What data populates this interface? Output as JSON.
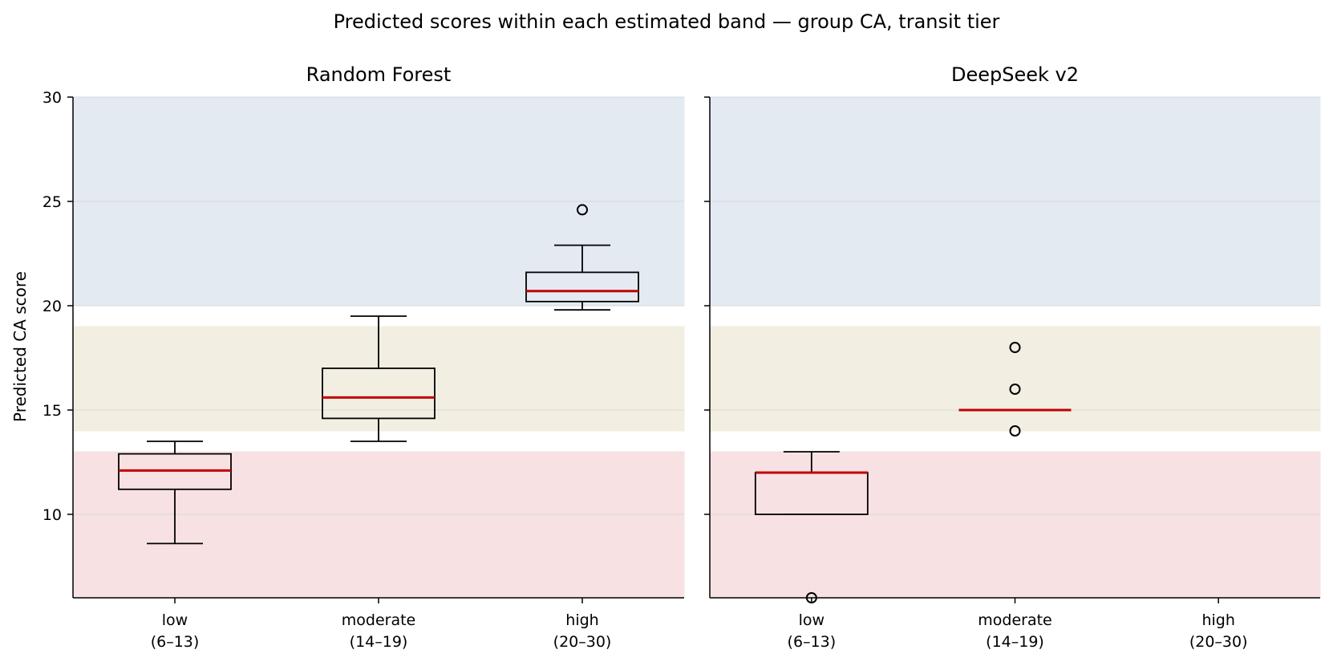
{
  "chart_data": {
    "type": "box",
    "title": "Predicted scores within each estimated band — group CA, transit tier",
    "ylabel": "Predicted CA score",
    "ylim": [
      6,
      30
    ],
    "yticks": [
      10,
      15,
      20,
      25,
      30
    ],
    "categories": [
      {
        "label": "low",
        "range": "(6–13)"
      },
      {
        "label": "moderate",
        "range": "(14–19)"
      },
      {
        "label": "high",
        "range": "(20–30)"
      }
    ],
    "bands": [
      {
        "name": "low",
        "from": 6,
        "to": 13,
        "color": "#f7e1e3"
      },
      {
        "name": "moderate",
        "from": 14,
        "to": 19,
        "color": "#f2eee2"
      },
      {
        "name": "high",
        "from": 20,
        "to": 30,
        "color": "#e3eaf2"
      }
    ],
    "colors": {
      "median": "#c00000",
      "box": "#000000"
    },
    "panels": [
      {
        "title": "Random Forest",
        "boxes": [
          {
            "category": "low",
            "whisker_low": 8.6,
            "q1": 11.2,
            "median": 12.1,
            "q3": 12.9,
            "whisker_high": 13.5,
            "outliers": []
          },
          {
            "category": "moderate",
            "whisker_low": 13.5,
            "q1": 14.6,
            "median": 15.6,
            "q3": 17.0,
            "whisker_high": 19.5,
            "outliers": []
          },
          {
            "category": "high",
            "whisker_low": 19.8,
            "q1": 20.2,
            "median": 20.7,
            "q3": 21.6,
            "whisker_high": 22.9,
            "outliers": [
              24.6
            ]
          }
        ]
      },
      {
        "title": "DeepSeek v2",
        "boxes": [
          {
            "category": "low",
            "whisker_low": 10,
            "q1": 10,
            "median": 12,
            "q3": 12,
            "whisker_high": 13,
            "outliers": [
              6
            ]
          },
          {
            "category": "moderate",
            "whisker_low": 15,
            "q1": 15,
            "median": 15,
            "q3": 15,
            "whisker_high": 15,
            "outliers": [
              14,
              16,
              18
            ]
          }
        ]
      }
    ]
  }
}
